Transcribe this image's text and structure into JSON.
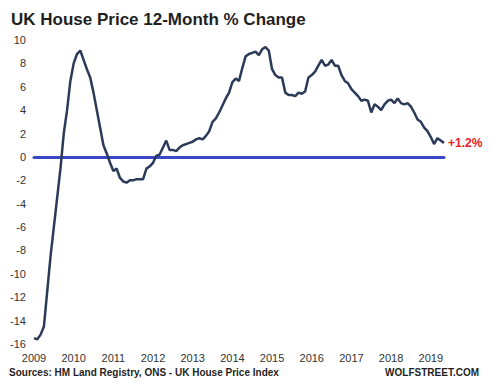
{
  "chart_data": {
    "type": "line",
    "title": "UK House Price 12-Month % Change",
    "source": "Sources: HM Land Registry, ONS - UK House Price Index",
    "credit": "WOLFSTREET.COM",
    "annotations": [
      {
        "text": "+1.2%",
        "color": "#e8202a"
      }
    ],
    "color": "#2b3a58",
    "categories": [
      "2009",
      null,
      null,
      null,
      null,
      null,
      null,
      null,
      null,
      null,
      null,
      null,
      "2010",
      null,
      null,
      null,
      null,
      null,
      null,
      null,
      null,
      null,
      null,
      null,
      "2011",
      null,
      null,
      null,
      null,
      null,
      null,
      null,
      null,
      null,
      null,
      null,
      "2012",
      null,
      null,
      null,
      null,
      null,
      null,
      null,
      null,
      null,
      null,
      null,
      "2013",
      null,
      null,
      null,
      null,
      null,
      null,
      null,
      null,
      null,
      null,
      null,
      "2014",
      null,
      null,
      null,
      null,
      null,
      null,
      null,
      null,
      null,
      null,
      null,
      "2015",
      null,
      null,
      null,
      null,
      null,
      null,
      null,
      null,
      null,
      null,
      null,
      "2016",
      null,
      null,
      null,
      null,
      null,
      null,
      null,
      null,
      null,
      null,
      null,
      "2017",
      null,
      null,
      null,
      null,
      null,
      null,
      null,
      null,
      null,
      null,
      null,
      "2018",
      null,
      null,
      null,
      null,
      null,
      null,
      null,
      null,
      null,
      null,
      null,
      "2019",
      null,
      null,
      null,
      null
    ],
    "values": [
      -15.5,
      -15.6,
      -15.2,
      -14.5,
      -11.5,
      -8.5,
      -6.0,
      -3.5,
      -1.0,
      2.0,
      4.0,
      6.5,
      8.0,
      8.8,
      9.1,
      8.3,
      7.5,
      6.8,
      5.5,
      4.0,
      2.5,
      1.0,
      0.3,
      -0.5,
      -1.2,
      -1.0,
      -1.8,
      -2.1,
      -2.2,
      -2.0,
      -2.0,
      -1.9,
      -1.9,
      -1.9,
      -1.0,
      -0.8,
      -0.5,
      0.1,
      0.2,
      0.8,
      1.4,
      0.6,
      0.6,
      0.5,
      0.8,
      1.0,
      1.1,
      1.2,
      1.3,
      1.5,
      1.6,
      1.5,
      1.8,
      2.2,
      3.0,
      3.3,
      3.8,
      4.4,
      5.0,
      5.5,
      6.4,
      6.7,
      6.5,
      7.6,
      8.6,
      8.8,
      8.9,
      9.0,
      8.7,
      9.2,
      9.4,
      9.1,
      7.5,
      7.0,
      6.8,
      6.8,
      5.5,
      5.3,
      5.3,
      5.2,
      5.5,
      5.4,
      5.6,
      6.8,
      7.0,
      7.3,
      7.8,
      8.3,
      7.8,
      7.9,
      8.3,
      7.8,
      7.8,
      7.0,
      6.5,
      6.3,
      5.8,
      5.5,
      5.2,
      4.8,
      4.9,
      4.8,
      3.8,
      4.5,
      4.3,
      4.0,
      4.5,
      4.8,
      4.9,
      4.6,
      5.0,
      4.6,
      4.5,
      4.6,
      4.3,
      3.8,
      3.2,
      3.0,
      2.5,
      2.2,
      1.7,
      1.1,
      1.6,
      1.4,
      1.2
    ],
    "ylim": [
      -16,
      10
    ],
    "yticks": [
      -16,
      -14,
      -12,
      -10,
      -8,
      -6,
      -4,
      -2,
      0,
      2,
      4,
      6,
      8,
      10
    ],
    "grid": false
  }
}
